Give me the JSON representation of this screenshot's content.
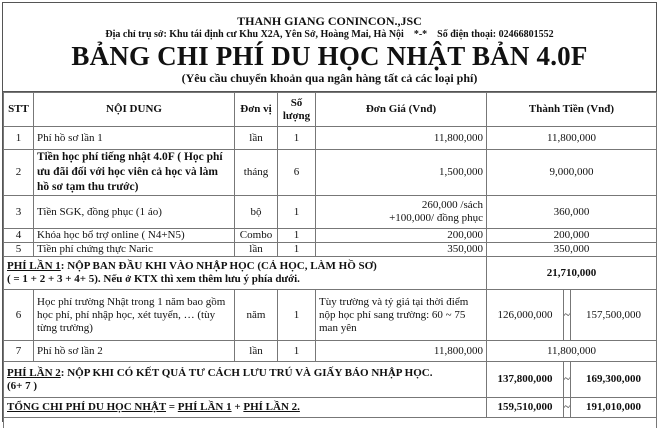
{
  "header": {
    "company": "THANH GIANG CONINCON.,JSC",
    "address": "Địa chỉ trụ sở: Khu tái định cư Khu X2A, Yên Sở, Hoàng Mai, Hà Nội",
    "separator": "*-*",
    "phone": "Số điện thoại: 02466801552",
    "title": "BẢNG CHI PHÍ DU HỌC NHẬT BẢN 4.0F",
    "subtitle": "(Yêu cầu chuyển khoản qua ngân hàng tất cả các loại phí)"
  },
  "columns": {
    "stt": "STT",
    "content": "NỘI DUNG",
    "unit": "Đơn vị",
    "qty": "Số lượng",
    "price": "Đơn Giá  (Vnđ)",
    "total": "Thành Tiền (Vnđ)"
  },
  "rows": [
    {
      "stt": "1",
      "content": "Phí hồ sơ lần 1",
      "unit": "lần",
      "qty": "1",
      "price": "11,800,000",
      "total": "11,800,000"
    },
    {
      "stt": "2",
      "content": "Tiền học phí tiếng nhật 4.0F ( Học phí ưu đãi đối với học viên cả học và làm hồ sơ tạm thu trước)",
      "unit": "tháng",
      "qty": "6",
      "price": "1,500,000",
      "total": "9,000,000"
    },
    {
      "stt": "3",
      "content": "Tiền SGK, đồng phục (1 áo)",
      "unit": "bộ",
      "qty": "1",
      "price_line1": "260,000 /sách",
      "price_line2": "+100,000/ đồng phục",
      "total": "360,000"
    },
    {
      "stt": "4",
      "content": "Khóa học bổ trợ online ( N4+N5)",
      "unit": "Combo",
      "qty": "1",
      "price": "200,000",
      "total": "200,000"
    },
    {
      "stt": "5",
      "content": "Tiền phí chứng thực Naric",
      "unit": "lần",
      "qty": "1",
      "price": "350,000",
      "total": "350,000"
    }
  ],
  "phase1": {
    "label": "PHÍ LẦN 1",
    "text": ": NỘP BAN ĐẦU KHI VÀO NHẬP HỌC (CẢ HỌC, LÀM HỒ SƠ)",
    "note": "( = 1 + 2 + 3 + 4+ 5). Nếu ở KTX thì xem thêm lưu ý phía dưới.",
    "total": "21,710,000"
  },
  "rows2": [
    {
      "stt": "6",
      "content": "Học phí trường Nhật trong 1 năm bao gồm học phí, phí nhập học, xét tuyển, … (tùy từng trường)",
      "unit": "năm",
      "qty": "1",
      "price": "Tùy trường và tỷ giá tại thời điểm nộp học phí sang trường: 60 ~ 75 man yên",
      "total_min": "126,000,000",
      "tilde": "~",
      "total_max": "157,500,000"
    },
    {
      "stt": "7",
      "content": "Phí hồ sơ lần 2",
      "unit": "lần",
      "qty": "1",
      "price": "11,800,000",
      "total": "11,800,000"
    }
  ],
  "phase2": {
    "label": "PHÍ LẦN 2",
    "text": ": NỘP KHI CÓ KẾT QUẢ TƯ CÁCH LƯU TRÚ VÀ GIẤY BÁO NHẬP HỌC.",
    "note": "(6+ 7 )",
    "min": "137,800,000",
    "tilde": "~",
    "max": "169,300,000"
  },
  "grand": {
    "label": "TỔNG CHI PHÍ DU HỌC NHẬT",
    "eq": " = ",
    "p1": "PHÍ LẦN 1",
    "plus": " + ",
    "p2": "PHÍ LẦN 2.",
    "min": "159,510,000",
    "tilde": "~",
    "max": "191,010,000"
  }
}
